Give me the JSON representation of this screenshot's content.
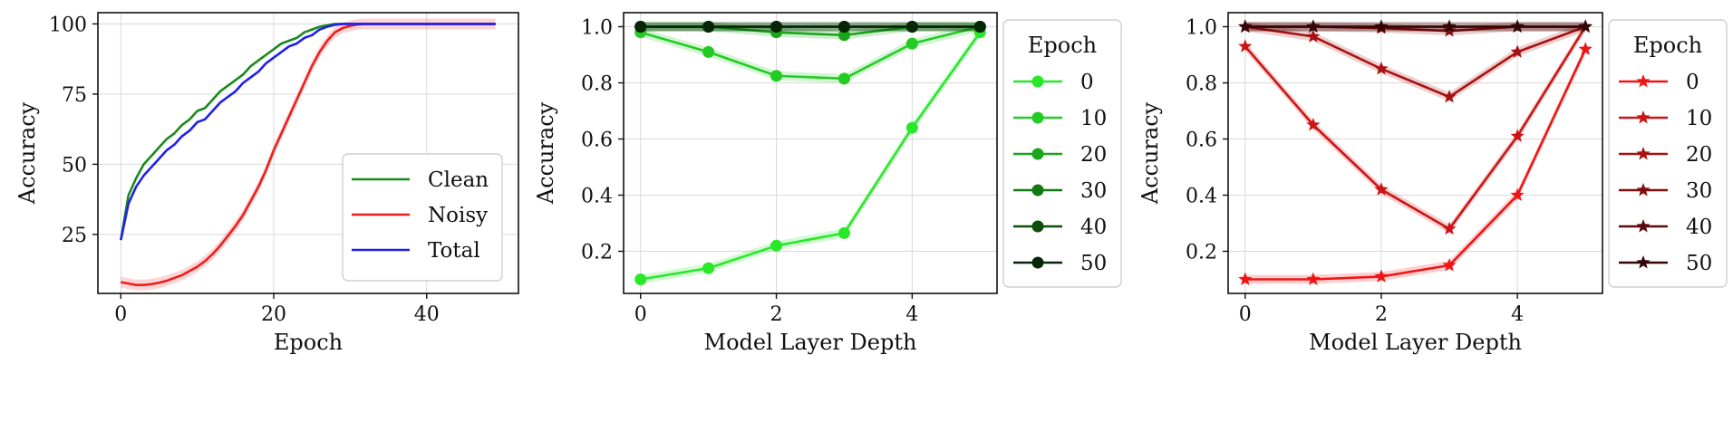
{
  "chart_data": [
    {
      "type": "line",
      "xlabel": "Epoch",
      "ylabel": "Accuracy",
      "xlim": [
        -3,
        52
      ],
      "ylim": [
        4,
        104
      ],
      "xticks": [
        0,
        20,
        40
      ],
      "yticks": [
        25,
        50,
        75,
        100
      ],
      "grid": true,
      "legend_position": "lower-right",
      "x": [
        0,
        1,
        2,
        3,
        4,
        5,
        6,
        7,
        8,
        9,
        10,
        11,
        12,
        13,
        14,
        15,
        16,
        17,
        18,
        19,
        20,
        21,
        22,
        23,
        24,
        25,
        26,
        27,
        28,
        29,
        30,
        31,
        32,
        33,
        34,
        35,
        36,
        37,
        38,
        39,
        40,
        41,
        42,
        43,
        44,
        45,
        46,
        47,
        48,
        49
      ],
      "series": [
        {
          "name": "Clean",
          "color": "#1a8a1a",
          "values": [
            23,
            39,
            45,
            50,
            53,
            56,
            59,
            61,
            64,
            66,
            69,
            70,
            73,
            76,
            78,
            80,
            82,
            85,
            87,
            89,
            91,
            93,
            94,
            95,
            97,
            98,
            99,
            99.5,
            100,
            100,
            100,
            100,
            100,
            100,
            100,
            100,
            100,
            100,
            100,
            100,
            100,
            100,
            100,
            100,
            100,
            100,
            100,
            100,
            100,
            100
          ]
        },
        {
          "name": "Noisy",
          "color": "#f01d1d",
          "values": [
            8,
            7.5,
            7,
            7,
            7.3,
            7.8,
            8.5,
            9.5,
            10.5,
            12,
            13.5,
            15.5,
            18,
            21,
            24.5,
            28,
            32,
            37,
            42,
            48,
            55,
            61,
            67,
            73,
            79,
            85,
            90,
            94,
            97,
            98.5,
            99.3,
            99.8,
            100,
            100,
            100,
            100,
            100,
            100,
            100,
            100,
            100,
            100,
            100,
            100,
            100,
            100,
            100,
            100,
            100,
            100
          ]
        },
        {
          "name": "Total",
          "color": "#1f1ff0",
          "values": [
            23,
            36,
            42,
            46,
            49,
            52,
            55,
            57,
            60,
            62,
            65,
            66,
            69,
            72,
            74,
            76,
            79,
            81,
            83,
            86,
            88,
            90,
            92,
            93,
            95,
            96,
            98,
            99,
            99.7,
            100,
            100,
            100,
            100,
            100,
            100,
            100,
            100,
            100,
            100,
            100,
            100,
            100,
            100,
            100,
            100,
            100,
            100,
            100,
            100,
            100
          ]
        }
      ]
    },
    {
      "type": "line",
      "xlabel": "Model Layer Depth",
      "ylabel": "Accuracy",
      "xlim": [
        -0.25,
        5.25
      ],
      "ylim": [
        0.05,
        1.05
      ],
      "xticks": [
        0,
        2,
        4
      ],
      "yticks": [
        0.2,
        0.4,
        0.6,
        0.8,
        1.0
      ],
      "ytick_labels": [
        "0.2",
        "0.4",
        "0.6",
        "0.8",
        "1.0"
      ],
      "grid": true,
      "legend_title": "Epoch",
      "legend_position": "outside-right",
      "marker": "circle",
      "x": [
        0,
        1,
        2,
        3,
        4,
        5
      ],
      "series": [
        {
          "name": "0",
          "color": "#29e829",
          "values": [
            0.1,
            0.14,
            0.22,
            0.265,
            0.64,
            0.98
          ]
        },
        {
          "name": "10",
          "color": "#22cc22",
          "values": [
            0.98,
            0.91,
            0.825,
            0.815,
            0.94,
            1.0
          ]
        },
        {
          "name": "20",
          "color": "#19a619",
          "values": [
            1.0,
            1.0,
            0.98,
            0.97,
            1.0,
            1.0
          ]
        },
        {
          "name": "30",
          "color": "#137a13",
          "values": [
            1.0,
            1.0,
            1.0,
            1.0,
            1.0,
            1.0
          ]
        },
        {
          "name": "40",
          "color": "#0b4f0b",
          "values": [
            1.0,
            1.0,
            1.0,
            1.0,
            1.0,
            1.0
          ]
        },
        {
          "name": "50",
          "color": "#062606",
          "values": [
            1.0,
            1.0,
            1.0,
            1.0,
            1.0,
            1.0
          ]
        }
      ]
    },
    {
      "type": "line",
      "xlabel": "Model Layer Depth",
      "ylabel": "Accuracy",
      "xlim": [
        -0.25,
        5.25
      ],
      "ylim": [
        0.05,
        1.05
      ],
      "xticks": [
        0,
        2,
        4
      ],
      "yticks": [
        0.2,
        0.4,
        0.6,
        0.8,
        1.0
      ],
      "ytick_labels": [
        "0.2",
        "0.4",
        "0.6",
        "0.8",
        "1.0"
      ],
      "grid": true,
      "legend_title": "Epoch",
      "legend_position": "outside-right",
      "marker": "star",
      "x": [
        0,
        1,
        2,
        3,
        4,
        5
      ],
      "series": [
        {
          "name": "0",
          "color": "#f01414",
          "values": [
            0.1,
            0.1,
            0.11,
            0.15,
            0.4,
            0.92
          ]
        },
        {
          "name": "10",
          "color": "#cc1414",
          "values": [
            0.93,
            0.65,
            0.42,
            0.28,
            0.61,
            1.0
          ]
        },
        {
          "name": "20",
          "color": "#a81212",
          "values": [
            1.0,
            0.965,
            0.85,
            0.75,
            0.91,
            1.0
          ]
        },
        {
          "name": "30",
          "color": "#800e0e",
          "values": [
            1.0,
            1.0,
            0.995,
            0.985,
            1.0,
            1.0
          ]
        },
        {
          "name": "40",
          "color": "#5a0a0a",
          "values": [
            1.0,
            1.0,
            1.0,
            1.0,
            1.0,
            1.0
          ]
        },
        {
          "name": "50",
          "color": "#330606",
          "values": [
            1.0,
            1.0,
            1.0,
            1.0,
            1.0,
            1.0
          ]
        }
      ]
    }
  ]
}
